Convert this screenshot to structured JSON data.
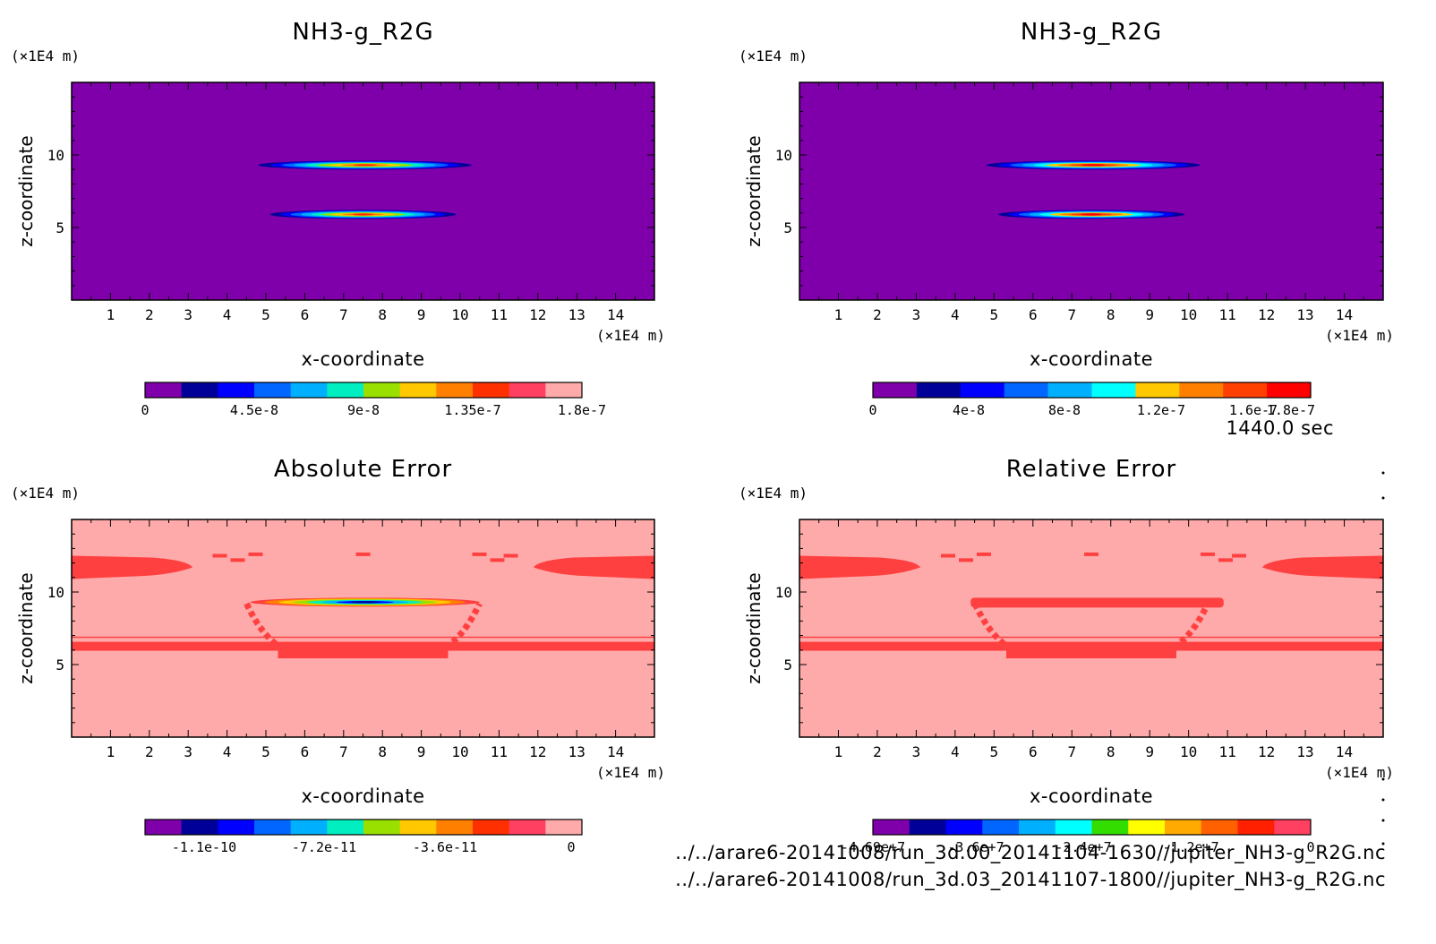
{
  "figure": {
    "time_label": "1440.0 sec",
    "source_files": [
      "../../arare6-20141008/run_3d.00_20141104-1630//jupiter_NH3-g_R2G.nc",
      "../../arare6-20141008/run_3d.03_20141107-1800//jupiter_NH3-g_R2G.nc"
    ]
  },
  "chart_data": [
    {
      "type": "heatmap",
      "id": "panel-top-left",
      "title": "NH3-g_R2G",
      "xlabel": "x-coordinate",
      "ylabel": "z-coordinate",
      "x_unit": "(x1E4 m)",
      "y_unit": "(x1E4 m)",
      "xlim": [
        0,
        15
      ],
      "ylim": [
        0,
        15
      ],
      "x_ticks": [
        "1",
        "2",
        "3",
        "4",
        "5",
        "6",
        "7",
        "8",
        "9",
        "10",
        "11",
        "12",
        "13",
        "14"
      ],
      "y_ticks": [
        "5",
        "10"
      ],
      "background_level": 0,
      "features": [
        {
          "kind": "lens",
          "x_range": [
            4.8,
            10.3
          ],
          "z_center": 9.3,
          "max": 1.8e-07
        },
        {
          "kind": "lens",
          "x_range": [
            5.1,
            9.9
          ],
          "z_center": 5.9,
          "max": 1.35e-07
        }
      ],
      "colorbar": {
        "colors": [
          "#7f00aa",
          "#000099",
          "#0000ff",
          "#0066ff",
          "#00b0ff",
          "#00eec0",
          "#99e000",
          "#ffc800",
          "#ff8000",
          "#ff3000",
          "#ff4060",
          "#ffaaaa"
        ],
        "tick_labels": [
          "0",
          "4.5e-8",
          "9e-8",
          "1.35e-7",
          "1.8e-7"
        ]
      },
      "grid": false
    },
    {
      "type": "heatmap",
      "id": "panel-top-right",
      "title": "NH3-g_R2G",
      "xlabel": "x-coordinate",
      "ylabel": "z-coordinate",
      "x_unit": "(x1E4 m)",
      "y_unit": "(x1E4 m)",
      "xlim": [
        0,
        15
      ],
      "ylim": [
        0,
        15
      ],
      "x_ticks": [
        "1",
        "2",
        "3",
        "4",
        "5",
        "6",
        "7",
        "8",
        "9",
        "10",
        "11",
        "12",
        "13",
        "14"
      ],
      "y_ticks": [
        "5",
        "10"
      ],
      "background_level": 0,
      "features": [
        {
          "kind": "lens",
          "x_range": [
            4.8,
            10.3
          ],
          "z_center": 9.3,
          "max": 1.8e-07
        },
        {
          "kind": "lens",
          "x_range": [
            5.1,
            9.9
          ],
          "z_center": 5.9,
          "max": 1.2e-07
        }
      ],
      "colorbar": {
        "colors": [
          "#7f00aa",
          "#000099",
          "#0000ff",
          "#0066ff",
          "#00b0ff",
          "#00ffff",
          "#ffc800",
          "#ff8000",
          "#ff4000",
          "#ff0000"
        ],
        "tick_labels": [
          "0",
          "4e-8",
          "8e-8",
          "1.2e-7",
          "1.6e-7",
          "1.8e-7"
        ]
      },
      "grid": false
    },
    {
      "type": "heatmap",
      "id": "panel-bottom-left",
      "title": "Absolute Error",
      "xlabel": "x-coordinate",
      "ylabel": "z-coordinate",
      "x_unit": "(x1E4 m)",
      "y_unit": "(x1E4 m)",
      "xlim": [
        0,
        15
      ],
      "ylim": [
        0,
        15
      ],
      "x_ticks": [
        "1",
        "2",
        "3",
        "4",
        "5",
        "6",
        "7",
        "8",
        "9",
        "10",
        "11",
        "12",
        "13",
        "14"
      ],
      "y_ticks": [
        "5",
        "10"
      ],
      "background_level": 0,
      "features": [
        {
          "kind": "band",
          "z_center": 11.7,
          "value": -4e-12
        },
        {
          "kind": "band",
          "z_center": 6.2,
          "value": -4e-12
        },
        {
          "kind": "lens",
          "x_range": [
            4.6,
            10.5
          ],
          "z_center": 9.3,
          "min": -1.1e-10
        }
      ],
      "colorbar": {
        "colors": [
          "#7f00aa",
          "#000099",
          "#0000ff",
          "#0066ff",
          "#00b0ff",
          "#00eec0",
          "#99e000",
          "#ffc800",
          "#ff8000",
          "#ff3000",
          "#ff4060",
          "#ffaaaa"
        ],
        "tick_labels": [
          "-1.1e-10",
          "-7.2e-11",
          "-3.6e-11",
          "0"
        ]
      },
      "grid": false
    },
    {
      "type": "heatmap",
      "id": "panel-bottom-right",
      "title": "Relative Error",
      "xlabel": "x-coordinate",
      "ylabel": "z-coordinate",
      "x_unit": "(x1E4 m)",
      "y_unit": "(x1E4 m)",
      "xlim": [
        0,
        15
      ],
      "ylim": [
        0,
        15
      ],
      "x_ticks": [
        "1",
        "2",
        "3",
        "4",
        "5",
        "6",
        "7",
        "8",
        "9",
        "10",
        "11",
        "12",
        "13",
        "14"
      ],
      "y_ticks": [
        "5",
        "10"
      ],
      "background_level": 0,
      "features": [
        {
          "kind": "band",
          "z_center": 11.7,
          "value": -1000000.0
        },
        {
          "kind": "band",
          "z_center": 6.2,
          "value": -1000000.0
        },
        {
          "kind": "bar",
          "x_range": [
            4.4,
            10.9
          ],
          "z_center": 9.3,
          "value": -1000000.0
        }
      ],
      "colorbar": {
        "colors": [
          "#7f00aa",
          "#000099",
          "#0000ff",
          "#0066ff",
          "#00b0ff",
          "#00ffff",
          "#33dd00",
          "#ffff00",
          "#ffaa00",
          "#ff6000",
          "#ff2000",
          "#ff4060"
        ],
        "tick_labels": [
          "-4.69e+7",
          "-3.6e+7",
          "-2.4e+7",
          "-1.2e+7",
          "0"
        ]
      },
      "grid": false
    }
  ]
}
